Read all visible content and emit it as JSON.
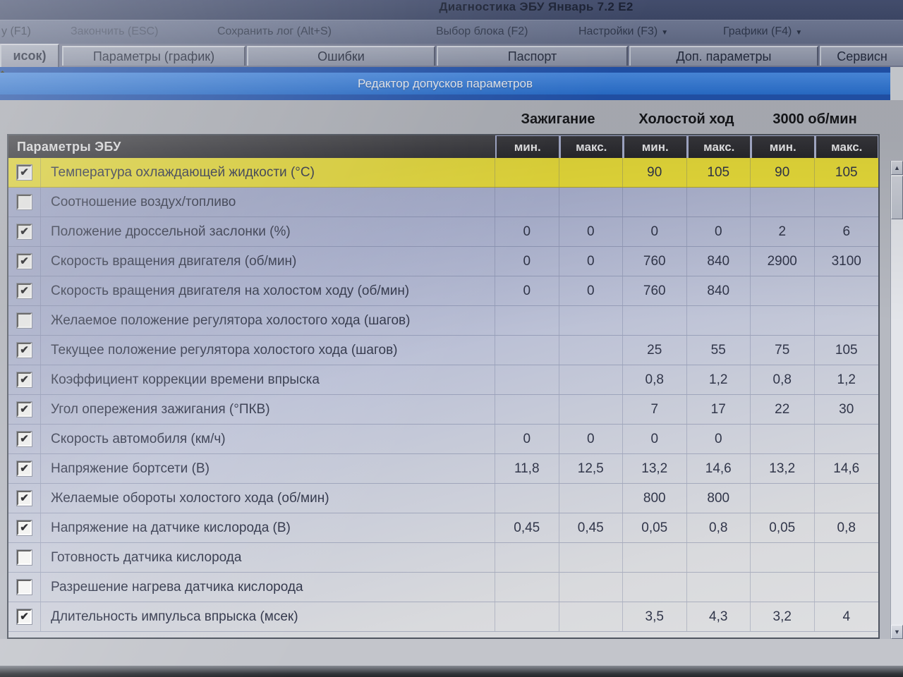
{
  "window": {
    "title": "Диагностика ЭБУ Январь 7.2 Е2"
  },
  "menu": {
    "items": [
      {
        "label": "у (F1)",
        "dropdown": false
      },
      {
        "label": "Закончить (ESC)",
        "dropdown": false
      },
      {
        "label": "Сохранить лог (Alt+S)",
        "dropdown": false
      },
      {
        "label": "Выбор блока (F2)",
        "dropdown": false
      },
      {
        "label": "Настройки (F3)",
        "dropdown": true
      },
      {
        "label": "Графики (F4)",
        "dropdown": true
      }
    ],
    "dropdown_arrow": "▼"
  },
  "tabs": [
    {
      "label": "исок)",
      "active": true
    },
    {
      "label": "Параметры (график)",
      "active": false
    },
    {
      "label": "Ошибки",
      "active": false
    },
    {
      "label": "Паспорт",
      "active": false
    },
    {
      "label": "Доп. параметры",
      "active": false
    },
    {
      "label": "Сервисн",
      "active": false
    }
  ],
  "editor_bar": {
    "title": "Редактор допусков параметров"
  },
  "column_groups": [
    "Зажигание",
    "Холостой ход",
    "3000 об/мин"
  ],
  "subheaders": [
    "мин.",
    "макс.",
    "мин.",
    "макс.",
    "мин.",
    "макс."
  ],
  "table": {
    "header": "Параметры ЭБУ",
    "rows": [
      {
        "checked": true,
        "highlighted": true,
        "label": "Температура охлаждающей жидкости (°С)",
        "values": [
          "",
          "",
          "90",
          "105",
          "90",
          "105"
        ]
      },
      {
        "checked": false,
        "highlighted": false,
        "label": "Соотношение воздух/топливо",
        "values": [
          "",
          "",
          "",
          "",
          "",
          ""
        ]
      },
      {
        "checked": true,
        "highlighted": false,
        "label": "Положение дроссельной заслонки (%)",
        "values": [
          "0",
          "0",
          "0",
          "0",
          "2",
          "6"
        ]
      },
      {
        "checked": true,
        "highlighted": false,
        "label": "Скорость вращения двигателя (об/мин)",
        "values": [
          "0",
          "0",
          "760",
          "840",
          "2900",
          "3100"
        ]
      },
      {
        "checked": true,
        "highlighted": false,
        "label": "Скорость вращения двигателя на холостом ходу (об/мин)",
        "values": [
          "0",
          "0",
          "760",
          "840",
          "",
          ""
        ]
      },
      {
        "checked": false,
        "highlighted": false,
        "label": "Желаемое положение регулятора холостого хода (шагов)",
        "values": [
          "",
          "",
          "",
          "",
          "",
          ""
        ]
      },
      {
        "checked": true,
        "highlighted": false,
        "label": "Текущее положение регулятора холостого хода (шагов)",
        "values": [
          "",
          "",
          "25",
          "55",
          "75",
          "105"
        ]
      },
      {
        "checked": true,
        "highlighted": false,
        "label": "Коэффициент коррекции времени впрыска",
        "values": [
          "",
          "",
          "0,8",
          "1,2",
          "0,8",
          "1,2"
        ]
      },
      {
        "checked": true,
        "highlighted": false,
        "label": "Угол опережения зажигания (°ПКВ)",
        "values": [
          "",
          "",
          "7",
          "17",
          "22",
          "30"
        ]
      },
      {
        "checked": true,
        "highlighted": false,
        "label": "Скорость автомобиля (км/ч)",
        "values": [
          "0",
          "0",
          "0",
          "0",
          "",
          ""
        ]
      },
      {
        "checked": true,
        "highlighted": false,
        "label": "Напряжение бортсети (В)",
        "values": [
          "11,8",
          "12,5",
          "13,2",
          "14,6",
          "13,2",
          "14,6"
        ]
      },
      {
        "checked": true,
        "highlighted": false,
        "label": "Желаемые обороты холостого хода (об/мин)",
        "values": [
          "",
          "",
          "800",
          "800",
          "",
          ""
        ]
      },
      {
        "checked": true,
        "highlighted": false,
        "label": "Напряжение на датчике кислорода (В)",
        "values": [
          "0,45",
          "0,45",
          "0,05",
          "0,8",
          "0,05",
          "0,8"
        ]
      },
      {
        "checked": false,
        "highlighted": false,
        "label": "Готовность датчика кислорода",
        "values": [
          "",
          "",
          "",
          "",
          "",
          ""
        ]
      },
      {
        "checked": false,
        "highlighted": false,
        "label": "Разрешение нагрева датчика кислорода",
        "values": [
          "",
          "",
          "",
          "",
          "",
          ""
        ]
      },
      {
        "checked": true,
        "highlighted": false,
        "label": "Длительность импульса впрыска (мсек)",
        "values": [
          "",
          "",
          "3,5",
          "4,3",
          "3,2",
          "4"
        ]
      }
    ]
  },
  "scrollbar": {
    "up_arrow": "▲",
    "down_arrow": "▼"
  },
  "icons": {
    "checkmark": "✔"
  },
  "colors": {
    "editor_bar_blue": "#2b74d6",
    "highlight_yellow": "#ece03b",
    "header_dark": "#313136",
    "row_lavender": "#adb4d3"
  }
}
